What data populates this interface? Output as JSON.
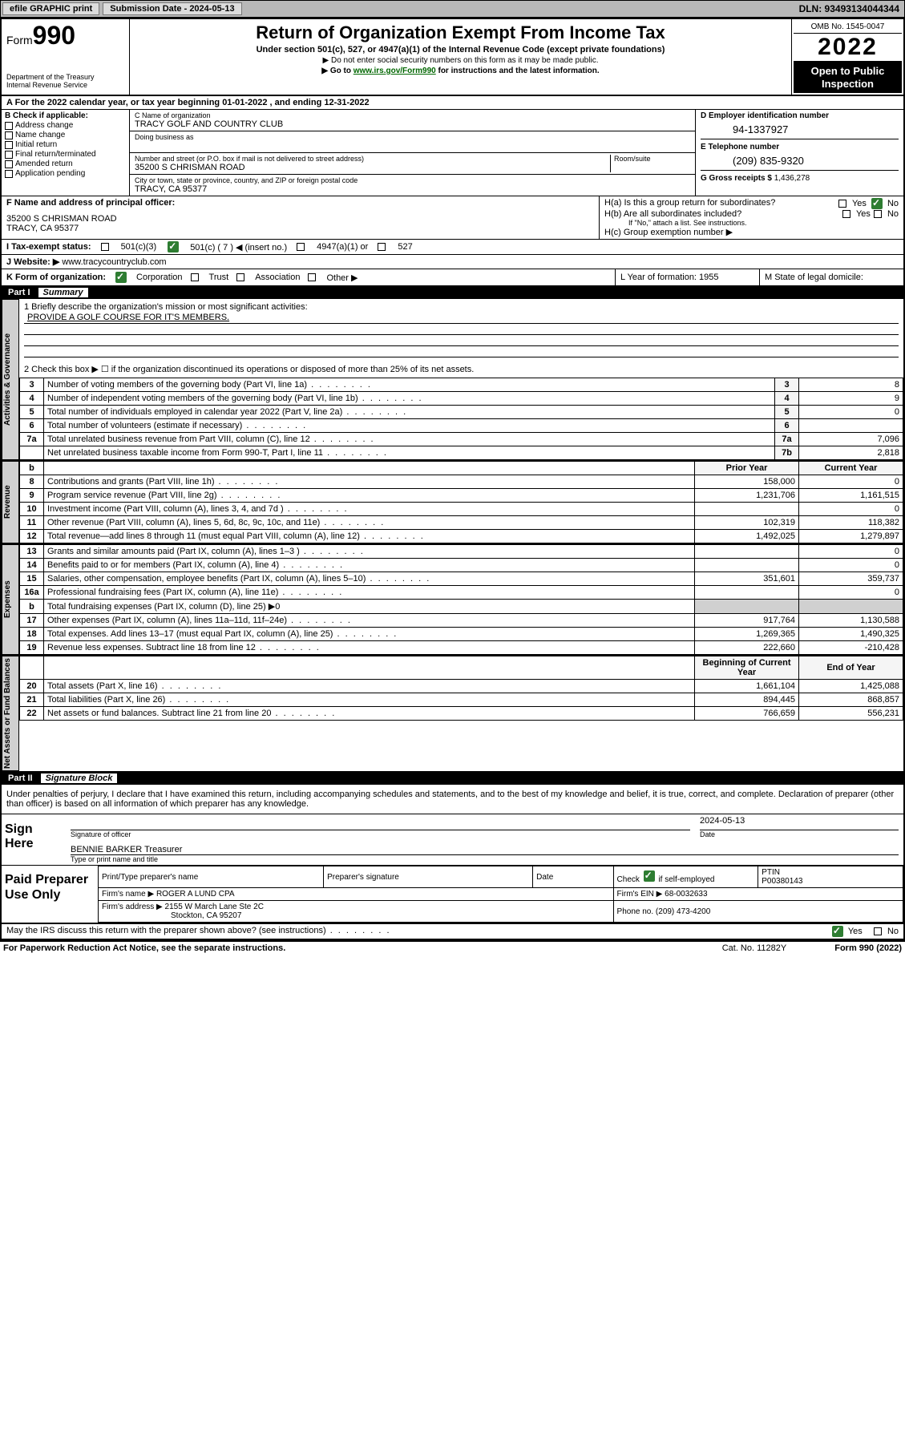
{
  "topbar": {
    "efile_label": "efile GRAPHIC print",
    "submission_label": "Submission Date - 2024-05-13",
    "dln_label": "DLN: 93493134044344"
  },
  "header": {
    "form_label": "Form",
    "form_number": "990",
    "dept1": "Department of the Treasury",
    "dept2": "Internal Revenue Service",
    "title": "Return of Organization Exempt From Income Tax",
    "subtitle": "Under section 501(c), 527, or 4947(a)(1) of the Internal Revenue Code (except private foundations)",
    "note1": "▶ Do not enter social security numbers on this form as it may be made public.",
    "note2_pre": "▶ Go to ",
    "note2_link": "www.irs.gov/Form990",
    "note2_post": " for instructions and the latest information.",
    "omb": "OMB No. 1545-0047",
    "year": "2022",
    "open_pub1": "Open to Public",
    "open_pub2": "Inspection"
  },
  "rowA": {
    "text": "A For the 2022 calendar year, or tax year beginning 01-01-2022   , and ending 12-31-2022"
  },
  "colB": {
    "header": "B Check if applicable:",
    "items": [
      "Address change",
      "Name change",
      "Initial return",
      "Final return/terminated",
      "Amended return",
      "Application pending"
    ]
  },
  "colC": {
    "name_label": "C Name of organization",
    "name_value": "TRACY GOLF AND COUNTRY CLUB",
    "dba_label": "Doing business as",
    "addr_label": "Number and street (or P.O. box if mail is not delivered to street address)",
    "addr_value": "35200 S CHRISMAN ROAD",
    "room_label": "Room/suite",
    "city_label": "City or town, state or province, country, and ZIP or foreign postal code",
    "city_value": "TRACY, CA  95377"
  },
  "colD": {
    "ein_label": "D Employer identification number",
    "ein_value": "94-1337927",
    "phone_label": "E Telephone number",
    "phone_value": "(209) 835-9320",
    "gross_label": "G Gross receipts $",
    "gross_value": "1,436,278"
  },
  "rowF": {
    "label": "F  Name and address of principal officer:",
    "addr1": "35200 S CHRISMAN ROAD",
    "addr2": "TRACY, CA  95377"
  },
  "rowH": {
    "ha": "H(a)  Is this a group return for subordinates?",
    "hb": "H(b)  Are all subordinates included?",
    "hb_note": "If \"No,\" attach a list. See instructions.",
    "hc": "H(c)  Group exemption number ▶",
    "yes": "Yes",
    "no": "No"
  },
  "rowI": {
    "label": "I     Tax-exempt status:",
    "opt1": "501(c)(3)",
    "opt2_pre": "501(c) ( 7 ) ◀ (insert no.)",
    "opt3": "4947(a)(1) or",
    "opt4": "527"
  },
  "rowJ": {
    "label": "J    Website: ▶",
    "value": "www.tracycountryclub.com"
  },
  "rowK": {
    "label": "K Form of organization:",
    "opts": [
      "Corporation",
      "Trust",
      "Association",
      "Other ▶"
    ]
  },
  "rowL": {
    "label": "L Year of formation: 1955"
  },
  "rowM": {
    "label": "M State of legal domicile:"
  },
  "part1": {
    "header_part": "Part I",
    "header_title": "Summary",
    "line1_label": "1   Briefly describe the organization's mission or most significant activities:",
    "line1_value": "PROVIDE A GOLF COURSE FOR IT'S MEMBERS.",
    "line2": "2   Check this box ▶ ☐  if the organization discontinued its operations or disposed of more than 25% of its net assets."
  },
  "governance_lines": [
    {
      "n": "3",
      "d": "Number of voting members of the governing body (Part VI, line 1a)",
      "box": "3",
      "v": "8"
    },
    {
      "n": "4",
      "d": "Number of independent voting members of the governing body (Part VI, line 1b)",
      "box": "4",
      "v": "9"
    },
    {
      "n": "5",
      "d": "Total number of individuals employed in calendar year 2022 (Part V, line 2a)",
      "box": "5",
      "v": "0"
    },
    {
      "n": "6",
      "d": "Total number of volunteers (estimate if necessary)",
      "box": "6",
      "v": ""
    },
    {
      "n": "7a",
      "d": "Total unrelated business revenue from Part VIII, column (C), line 12",
      "box": "7a",
      "v": "7,096"
    },
    {
      "n": "",
      "d": "Net unrelated business taxable income from Form 990-T, Part I, line 11",
      "box": "7b",
      "v": "2,818"
    }
  ],
  "rev_header": {
    "b": "b",
    "prior": "Prior Year",
    "current": "Current Year"
  },
  "revenue_lines": [
    {
      "n": "8",
      "d": "Contributions and grants (Part VIII, line 1h)",
      "p": "158,000",
      "c": "0"
    },
    {
      "n": "9",
      "d": "Program service revenue (Part VIII, line 2g)",
      "p": "1,231,706",
      "c": "1,161,515"
    },
    {
      "n": "10",
      "d": "Investment income (Part VIII, column (A), lines 3, 4, and 7d )",
      "p": "",
      "c": "0"
    },
    {
      "n": "11",
      "d": "Other revenue (Part VIII, column (A), lines 5, 6d, 8c, 9c, 10c, and 11e)",
      "p": "102,319",
      "c": "118,382"
    },
    {
      "n": "12",
      "d": "Total revenue—add lines 8 through 11 (must equal Part VIII, column (A), line 12)",
      "p": "1,492,025",
      "c": "1,279,897"
    }
  ],
  "expense_lines": [
    {
      "n": "13",
      "d": "Grants and similar amounts paid (Part IX, column (A), lines 1–3 )",
      "p": "",
      "c": "0"
    },
    {
      "n": "14",
      "d": "Benefits paid to or for members (Part IX, column (A), line 4)",
      "p": "",
      "c": "0"
    },
    {
      "n": "15",
      "d": "Salaries, other compensation, employee benefits (Part IX, column (A), lines 5–10)",
      "p": "351,601",
      "c": "359,737"
    },
    {
      "n": "16a",
      "d": "Professional fundraising fees (Part IX, column (A), line 11e)",
      "p": "",
      "c": "0"
    },
    {
      "n": "b",
      "d": "Total fundraising expenses (Part IX, column (D), line 25) ▶0",
      "p": "__SHADE__",
      "c": "__SHADE__"
    },
    {
      "n": "17",
      "d": "Other expenses (Part IX, column (A), lines 11a–11d, 11f–24e)",
      "p": "917,764",
      "c": "1,130,588"
    },
    {
      "n": "18",
      "d": "Total expenses. Add lines 13–17 (must equal Part IX, column (A), line 25)",
      "p": "1,269,365",
      "c": "1,490,325"
    },
    {
      "n": "19",
      "d": "Revenue less expenses. Subtract line 18 from line 12",
      "p": "222,660",
      "c": "-210,428"
    }
  ],
  "net_header": {
    "begin": "Beginning of Current Year",
    "end": "End of Year"
  },
  "net_lines": [
    {
      "n": "20",
      "d": "Total assets (Part X, line 16)",
      "p": "1,661,104",
      "c": "1,425,088"
    },
    {
      "n": "21",
      "d": "Total liabilities (Part X, line 26)",
      "p": "894,445",
      "c": "868,857"
    },
    {
      "n": "22",
      "d": "Net assets or fund balances. Subtract line 21 from line 20",
      "p": "766,659",
      "c": "556,231"
    }
  ],
  "vtabs": {
    "gov": "Activities & Governance",
    "rev": "Revenue",
    "exp": "Expenses",
    "net": "Net Assets or Fund Balances"
  },
  "part2": {
    "header_part": "Part II",
    "header_title": "Signature Block",
    "declaration": "Under penalties of perjury, I declare that I have examined this return, including accompanying schedules and statements, and to the best of my knowledge and belief, it is true, correct, and complete. Declaration of preparer (other than officer) is based on all information of which preparer has any knowledge."
  },
  "sign": {
    "here": "Sign Here",
    "sig_officer": "Signature of officer",
    "date_label": "Date",
    "date_value": "2024-05-13",
    "name_title": "BENNIE BARKER Treasurer",
    "type_name": "Type or print name and title"
  },
  "paid": {
    "here": "Paid Preparer Use Only",
    "c1": "Print/Type preparer's name",
    "c2": "Preparer's signature",
    "c3": "Date",
    "c4_pre": "Check",
    "c4_post": "if self-employed",
    "c5": "PTIN",
    "ptin": "P00380143",
    "firm_name_label": "Firm's name    ▶",
    "firm_name": "ROGER A LUND CPA",
    "firm_ein_label": "Firm's EIN ▶",
    "firm_ein": "68-0032633",
    "firm_addr_label": "Firm's address ▶",
    "firm_addr1": "2155 W March Lane Ste 2C",
    "firm_addr2": "Stockton, CA  95207",
    "phone_label": "Phone no.",
    "phone": "(209) 473-4200"
  },
  "may_irs": {
    "text": "May the IRS discuss this return with the preparer shown above? (see instructions)",
    "yes": "Yes",
    "no": "No"
  },
  "footer": {
    "left": "For Paperwork Reduction Act Notice, see the separate instructions.",
    "mid": "Cat. No. 11282Y",
    "right": "Form 990 (2022)"
  }
}
